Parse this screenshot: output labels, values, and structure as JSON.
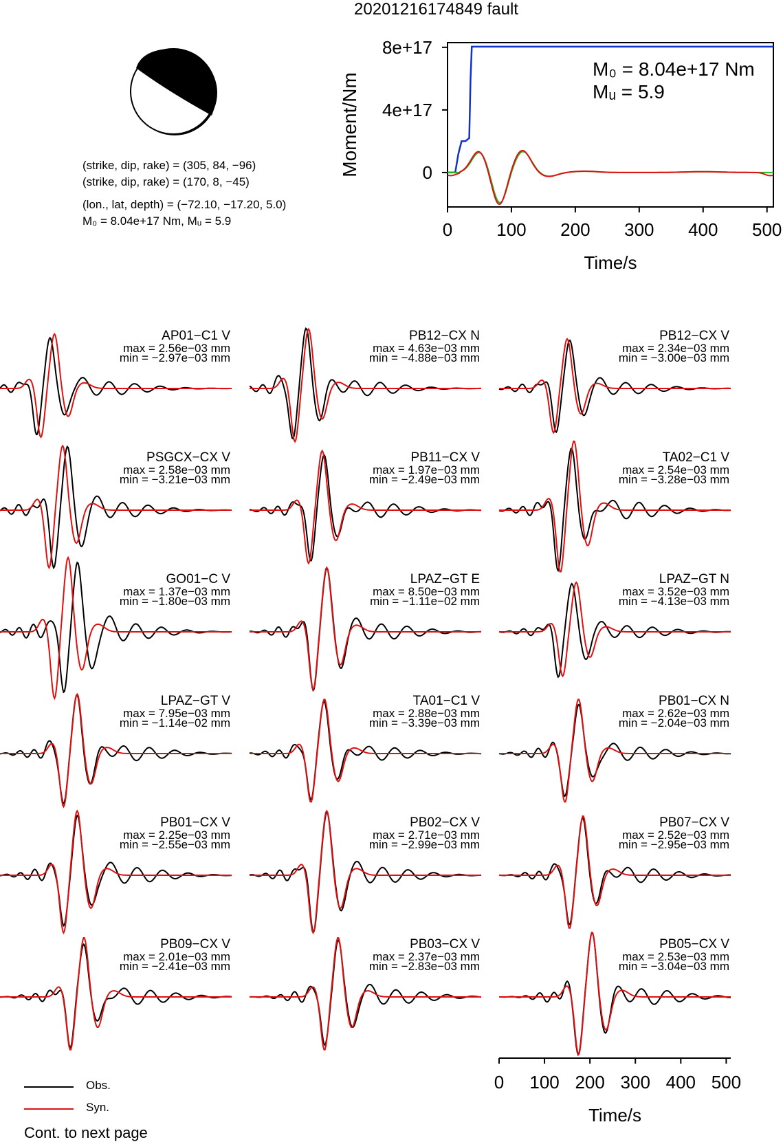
{
  "title": "20201216174849 fault",
  "mechanism": {
    "plane1": "(strike, dip, rake) = (305, 84, −96)",
    "plane2": "(strike, dip, rake) = (170, 8, −45)",
    "location": "(lon., lat, depth) = (−72.10, −17.20, 5.0)",
    "moment_line": "M₀ = 8.04e+17 Nm, Mᵤ = 5.9"
  },
  "legend": {
    "obs": "Obs.",
    "syn": "Syn."
  },
  "footer": "Cont. to next page",
  "colors": {
    "obs": "#000000",
    "syn": "#dd1111",
    "moment": "#1133cc",
    "green": "#22bb22"
  },
  "chart_data": [
    {
      "type": "line",
      "title": "",
      "xlabel": "Time/s",
      "ylabel": "Moment/Nm",
      "xlim": [
        0,
        510
      ],
      "ylim": [
        -2.2e+17,
        8.3e+17
      ],
      "x_ticks": [
        0,
        100,
        200,
        300,
        400,
        500
      ],
      "x_tick_labels": [
        "0",
        "100",
        "200",
        "300",
        "400",
        "500"
      ],
      "y_ticks": [
        0,
        4e+17,
        8e+17
      ],
      "y_tick_labels": [
        "0",
        "4e+17",
        "8e+17"
      ],
      "annotation_m0": "M₀ = 8.04e+17 Nm",
      "annotation_mw": "Mᵤ = 5.9",
      "moment_x": [
        0,
        12,
        17,
        22,
        24,
        28,
        34,
        36,
        38,
        510
      ],
      "moment_y": [
        0,
        0,
        1.2e+17,
        2e+17,
        2e+17,
        2e+17,
        2.2e+17,
        6e+17,
        8.04e+17,
        8.04e+17
      ]
    },
    {
      "type": "line",
      "xlabel": "Time/s",
      "xlim": [
        0,
        510
      ],
      "x_ticks": [
        0,
        100,
        200,
        300,
        400,
        500
      ],
      "x_tick_labels": [
        "0",
        "100",
        "200",
        "300",
        "400",
        "500"
      ],
      "stations": [
        {
          "name": "AP01−C1 V",
          "max": "max = 2.56e−03 mm",
          "min": "min = −2.97e−03 mm"
        },
        {
          "name": "PB12−CX N",
          "max": "max = 4.63e−03 mm",
          "min": "min = −4.88e−03 mm"
        },
        {
          "name": "PB12−CX V",
          "max": "max = 2.34e−03 mm",
          "min": "min = −3.00e−03 mm"
        },
        {
          "name": "PSGCX−CX V",
          "max": "max = 2.58e−03 mm",
          "min": "min = −3.21e−03 mm"
        },
        {
          "name": "PB11−CX V",
          "max": "max = 1.97e−03 mm",
          "min": "min = −2.49e−03 mm"
        },
        {
          "name": "TA02−C1 V",
          "max": "max = 2.54e−03 mm",
          "min": "min = −3.28e−03 mm"
        },
        {
          "name": "GO01−C V",
          "max": "max = 1.37e−03 mm",
          "min": "min = −1.80e−03 mm"
        },
        {
          "name": "LPAZ−GT E",
          "max": "max = 8.50e−03 mm",
          "min": "min = −1.11e−02 mm"
        },
        {
          "name": "LPAZ−GT N",
          "max": "max = 3.52e−03 mm",
          "min": "min = −4.13e−03 mm"
        },
        {
          "name": "LPAZ−GT V",
          "max": "max = 7.95e−03 mm",
          "min": "min = −1.14e−02 mm"
        },
        {
          "name": "TA01−C1 V",
          "max": "max = 2.88e−03 mm",
          "min": "min = −3.39e−03 mm"
        },
        {
          "name": "PB01−CX N",
          "max": "max = 2.62e−03 mm",
          "min": "min = −2.04e−03 mm"
        },
        {
          "name": "PB01−CX V",
          "max": "max = 2.25e−03 mm",
          "min": "min = −2.55e−03 mm"
        },
        {
          "name": "PB02−CX V",
          "max": "max = 2.71e−03 mm",
          "min": "min = −2.99e−03 mm"
        },
        {
          "name": "PB07−CX V",
          "max": "max = 2.52e−03 mm",
          "min": "min = −2.95e−03 mm"
        },
        {
          "name": "PB09−CX V",
          "max": "max = 2.01e−03 mm",
          "min": "min = −2.41e−03 mm"
        },
        {
          "name": "PB03−CX V",
          "max": "max = 2.37e−03 mm",
          "min": "min = −2.83e−03 mm"
        },
        {
          "name": "PB05−CX V",
          "max": "max = 2.53e−03 mm",
          "min": "min = −3.04e−03 mm"
        }
      ]
    }
  ]
}
